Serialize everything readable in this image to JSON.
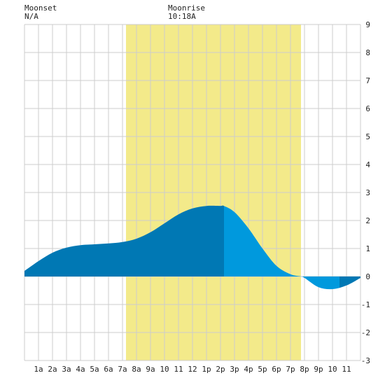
{
  "moonset": {
    "title": "Moonset",
    "time": "N/A"
  },
  "moonrise": {
    "title": "Moonrise",
    "time": "10:18A"
  },
  "colors": {
    "background": "#ffffff",
    "grid": "#cccccc",
    "daylight_band": "#f3ea8a",
    "tide_night": "#0078b4",
    "tide_day": "#0099dd"
  },
  "chart_data": {
    "type": "area",
    "title": "",
    "xlabel": "",
    "ylabel": "",
    "x_tick_labels": [
      "1a",
      "2a",
      "3a",
      "4a",
      "5a",
      "6a",
      "7a",
      "8a",
      "9a",
      "10",
      "11",
      "12",
      "1p",
      "2p",
      "3p",
      "4p",
      "5p",
      "6p",
      "7p",
      "8p",
      "9p",
      "10",
      "11"
    ],
    "x_tick_hours": [
      1,
      2,
      3,
      4,
      5,
      6,
      7,
      8,
      9,
      10,
      11,
      12,
      13,
      14,
      15,
      16,
      17,
      18,
      19,
      20,
      21,
      22,
      23
    ],
    "y_ticks": [
      -3,
      -2,
      -1,
      0,
      1,
      2,
      3,
      4,
      5,
      6,
      7,
      8,
      9
    ],
    "ylim": [
      -3,
      9
    ],
    "xlim": [
      0,
      24
    ],
    "grid": true,
    "y_axis_side": "right",
    "daylight_band_hours": [
      7.25,
      19.75
    ],
    "series": [
      {
        "x": [
          0,
          1,
          2,
          3,
          4,
          5,
          6,
          7,
          8,
          9,
          10,
          11,
          12,
          13,
          14,
          14.25,
          15,
          16,
          17,
          18,
          19,
          19.75,
          20,
          21,
          22,
          23,
          24
        ],
        "values": [
          0.2,
          0.55,
          0.85,
          1.03,
          1.12,
          1.15,
          1.18,
          1.23,
          1.35,
          1.58,
          1.9,
          2.22,
          2.43,
          2.52,
          2.52,
          2.52,
          2.3,
          1.72,
          1.0,
          0.38,
          0.08,
          0.0,
          -0.05,
          -0.38,
          -0.45,
          -0.32,
          -0.05
        ]
      }
    ]
  }
}
